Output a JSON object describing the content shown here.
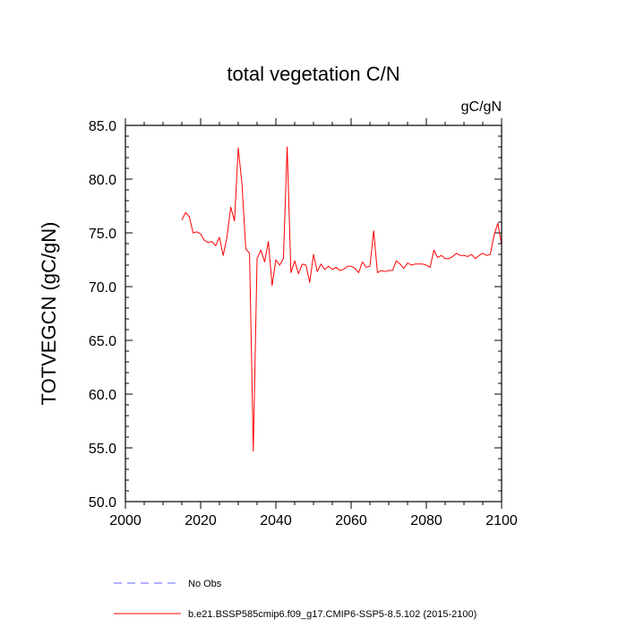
{
  "chart_data": {
    "type": "line",
    "title": "total vegetation C/N",
    "units": "gC/gN",
    "ylabel": "TOTVEGCN  (gC/gN)",
    "xlabel": "",
    "xlim": [
      2000,
      2100
    ],
    "ylim": [
      50.0,
      85.0
    ],
    "xticks": [
      2000,
      2020,
      2040,
      2060,
      2080,
      2100
    ],
    "xtick_labels": [
      "2000",
      "2020",
      "2040",
      "2060",
      "2080",
      "2100"
    ],
    "yticks": [
      50,
      55,
      60,
      65,
      70,
      75,
      80,
      85
    ],
    "ytick_labels": [
      "50.0",
      "55.0",
      "60.0",
      "65.0",
      "70.0",
      "75.0",
      "80.0",
      "85.0"
    ],
    "grid": false,
    "legend_position": "bottom",
    "series": [
      {
        "name": "b.e21.BSSP585cmip6.f09_g17.CMIP6-SSP5-8.5.102 (2015-2100)",
        "color": "#ff0000",
        "style": "solid",
        "x": [
          2015,
          2016,
          2017,
          2018,
          2019,
          2020,
          2021,
          2022,
          2023,
          2024,
          2025,
          2026,
          2027,
          2028,
          2029,
          2030,
          2031,
          2032,
          2033,
          2034,
          2035,
          2036,
          2037,
          2038,
          2039,
          2040,
          2041,
          2042,
          2043,
          2044,
          2045,
          2046,
          2047,
          2048,
          2049,
          2050,
          2051,
          2052,
          2053,
          2054,
          2055,
          2056,
          2057,
          2058,
          2059,
          2060,
          2061,
          2062,
          2063,
          2064,
          2065,
          2066,
          2067,
          2068,
          2069,
          2070,
          2071,
          2072,
          2073,
          2074,
          2075,
          2076,
          2077,
          2078,
          2079,
          2080,
          2081,
          2082,
          2083,
          2084,
          2085,
          2086,
          2087,
          2088,
          2089,
          2090,
          2091,
          2092,
          2093,
          2094,
          2095,
          2096,
          2097,
          2098,
          2099,
          2100
        ],
        "y": [
          76.2,
          76.9,
          76.5,
          75.0,
          75.1,
          74.9,
          74.3,
          74.1,
          74.2,
          73.8,
          74.6,
          72.9,
          74.6,
          77.4,
          76.1,
          82.9,
          79.5,
          73.5,
          73.1,
          54.7,
          72.6,
          73.4,
          72.3,
          74.2,
          70.1,
          72.5,
          72.0,
          72.6,
          83.0,
          71.3,
          72.4,
          71.2,
          72.1,
          72.0,
          70.4,
          73.0,
          71.4,
          72.1,
          71.6,
          71.9,
          71.6,
          71.8,
          71.5,
          71.6,
          71.9,
          71.9,
          71.7,
          71.3,
          72.3,
          71.8,
          71.9,
          75.2,
          71.3,
          71.5,
          71.4,
          71.5,
          71.5,
          72.4,
          72.1,
          71.7,
          72.2,
          72.0,
          72.1,
          72.1,
          72.1,
          72.0,
          71.8,
          73.4,
          72.7,
          72.9,
          72.6,
          72.6,
          72.8,
          73.1,
          72.9,
          72.9,
          72.8,
          73.0,
          72.6,
          72.9,
          73.1,
          72.9,
          73.0,
          74.8,
          75.9,
          73.9
        ]
      }
    ],
    "legend": [
      {
        "label": "No Obs",
        "color": "#6666ff",
        "style": "dashed"
      },
      {
        "label": "b.e21.BSSP585cmip6.f09_g17.CMIP6-SSP5-8.5.102 (2015-2100)",
        "color": "#ff0000",
        "style": "solid"
      }
    ]
  }
}
